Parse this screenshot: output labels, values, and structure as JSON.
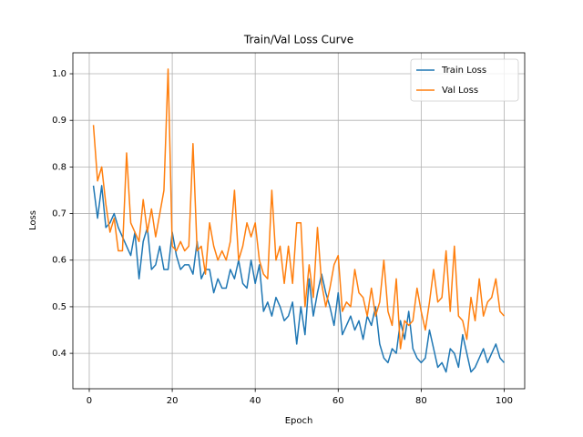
{
  "chart_data": {
    "type": "line",
    "title": "Train/Val Loss Curve",
    "x_label": "Epoch",
    "y_label": "Loss",
    "x": [
      1,
      2,
      3,
      4,
      5,
      6,
      7,
      8,
      9,
      10,
      11,
      12,
      13,
      14,
      15,
      16,
      17,
      18,
      19,
      20,
      21,
      22,
      23,
      24,
      25,
      26,
      27,
      28,
      29,
      30,
      31,
      32,
      33,
      34,
      35,
      36,
      37,
      38,
      39,
      40,
      41,
      42,
      43,
      44,
      45,
      46,
      47,
      48,
      49,
      50,
      51,
      52,
      53,
      54,
      55,
      56,
      57,
      58,
      59,
      60,
      61,
      62,
      63,
      64,
      65,
      66,
      67,
      68,
      69,
      70,
      71,
      72,
      73,
      74,
      75,
      76,
      77,
      78,
      79,
      80,
      81,
      82,
      83,
      84,
      85,
      86,
      87,
      88,
      89,
      90,
      91,
      92,
      93,
      94,
      95,
      96,
      97,
      98,
      99,
      100
    ],
    "series": [
      {
        "name": "Train Loss",
        "color": "#1f77b4",
        "values": [
          0.76,
          0.69,
          0.76,
          0.67,
          0.68,
          0.7,
          0.67,
          0.65,
          0.63,
          0.61,
          0.66,
          0.56,
          0.64,
          0.67,
          0.58,
          0.59,
          0.63,
          0.58,
          0.58,
          0.66,
          0.61,
          0.58,
          0.59,
          0.59,
          0.57,
          0.64,
          0.56,
          0.58,
          0.58,
          0.53,
          0.56,
          0.54,
          0.54,
          0.58,
          0.56,
          0.6,
          0.55,
          0.54,
          0.6,
          0.55,
          0.59,
          0.49,
          0.51,
          0.48,
          0.52,
          0.5,
          0.47,
          0.48,
          0.51,
          0.42,
          0.5,
          0.44,
          0.56,
          0.48,
          0.53,
          0.57,
          0.53,
          0.5,
          0.46,
          0.53,
          0.44,
          0.46,
          0.48,
          0.45,
          0.47,
          0.43,
          0.48,
          0.46,
          0.5,
          0.42,
          0.39,
          0.38,
          0.41,
          0.4,
          0.47,
          0.43,
          0.49,
          0.41,
          0.39,
          0.38,
          0.39,
          0.45,
          0.41,
          0.37,
          0.38,
          0.36,
          0.41,
          0.4,
          0.37,
          0.44,
          0.4,
          0.36,
          0.37,
          0.39,
          0.41,
          0.38,
          0.4,
          0.42,
          0.39,
          0.38
        ]
      },
      {
        "name": "Val Loss",
        "color": "#ff7f0e",
        "values": [
          0.89,
          0.77,
          0.8,
          0.72,
          0.66,
          0.69,
          0.62,
          0.62,
          0.83,
          0.68,
          0.66,
          0.64,
          0.73,
          0.66,
          0.71,
          0.65,
          0.7,
          0.75,
          1.01,
          0.63,
          0.62,
          0.64,
          0.62,
          0.63,
          0.85,
          0.62,
          0.63,
          0.57,
          0.68,
          0.63,
          0.6,
          0.62,
          0.6,
          0.64,
          0.75,
          0.6,
          0.63,
          0.68,
          0.65,
          0.68,
          0.6,
          0.57,
          0.56,
          0.75,
          0.6,
          0.63,
          0.55,
          0.63,
          0.55,
          0.68,
          0.68,
          0.5,
          0.59,
          0.52,
          0.67,
          0.55,
          0.5,
          0.54,
          0.59,
          0.61,
          0.49,
          0.51,
          0.5,
          0.58,
          0.53,
          0.52,
          0.48,
          0.54,
          0.48,
          0.51,
          0.6,
          0.49,
          0.46,
          0.56,
          0.41,
          0.47,
          0.46,
          0.47,
          0.54,
          0.49,
          0.45,
          0.51,
          0.58,
          0.51,
          0.52,
          0.62,
          0.49,
          0.63,
          0.48,
          0.47,
          0.43,
          0.52,
          0.47,
          0.56,
          0.48,
          0.51,
          0.52,
          0.56,
          0.49,
          0.48
        ]
      }
    ],
    "xlim": [
      -3.95,
      104.95
    ],
    "xticks": [
      0,
      20,
      40,
      60,
      80,
      100
    ],
    "ylim": [
      0.324,
      1.045
    ],
    "yticks": [
      0.4,
      0.5,
      0.6,
      0.7,
      0.8,
      0.9,
      {
        "value": 1.0,
        "label": "1.0"
      }
    ],
    "grid": true,
    "legend": "upper right"
  }
}
